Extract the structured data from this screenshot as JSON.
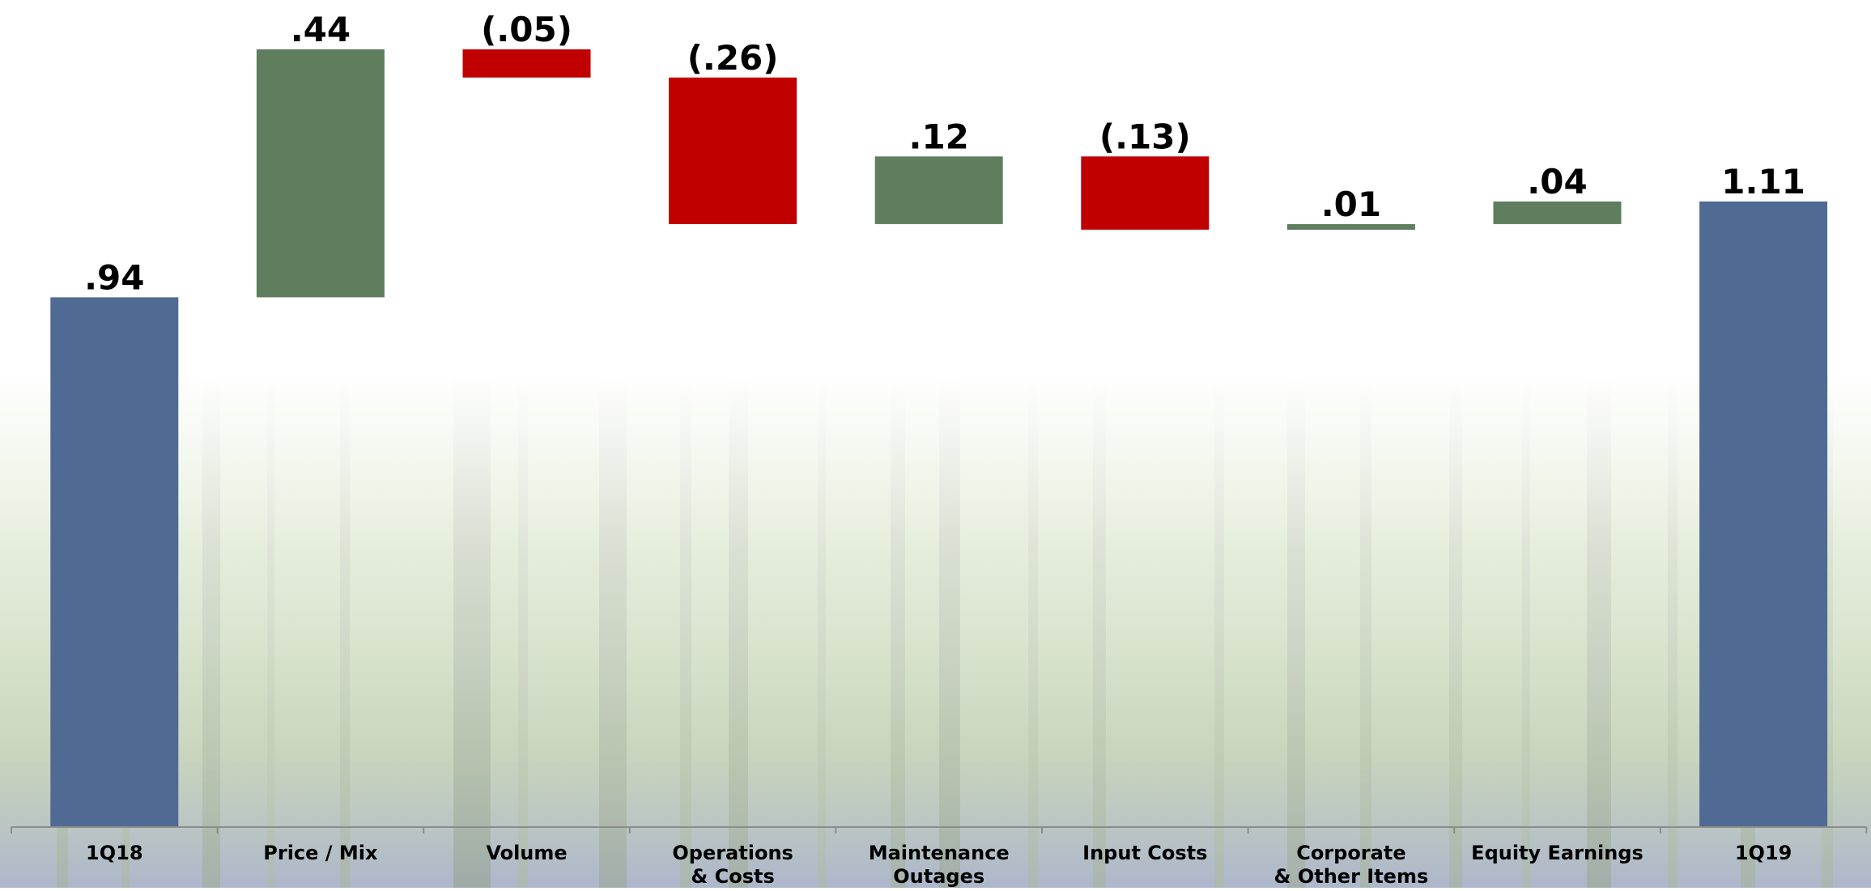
{
  "chart_data": {
    "type": "bar",
    "subtype": "waterfall",
    "categories": [
      [
        "1Q18"
      ],
      [
        "Price / Mix"
      ],
      [
        "Volume"
      ],
      [
        "Operations",
        "& Costs"
      ],
      [
        "Maintenance",
        "Outages"
      ],
      [
        "Input Costs"
      ],
      [
        "Corporate",
        "& Other Items"
      ],
      [
        "Equity Earnings"
      ],
      [
        "1Q19"
      ]
    ],
    "values": [
      0.94,
      0.44,
      -0.05,
      -0.26,
      0.12,
      -0.13,
      0.01,
      0.04,
      1.11
    ],
    "value_labels": [
      ".94",
      ".44",
      "(.05)",
      "(.26)",
      ".12",
      "(.13)",
      ".01",
      ".04",
      "1.11"
    ],
    "kinds": [
      "total",
      "delta",
      "delta",
      "delta",
      "delta",
      "delta",
      "delta",
      "delta",
      "total"
    ],
    "colors": {
      "total": "#4f6a93",
      "increase": "#5e7e5d",
      "decrease": "#c00000",
      "axis": "#8c8c8c",
      "text": "#000000"
    },
    "title": "",
    "xlabel": "",
    "ylabel": "",
    "ylim": [
      0,
      1.38
    ],
    "grid": false,
    "legend": "none",
    "background": "forest-photo-faded"
  }
}
